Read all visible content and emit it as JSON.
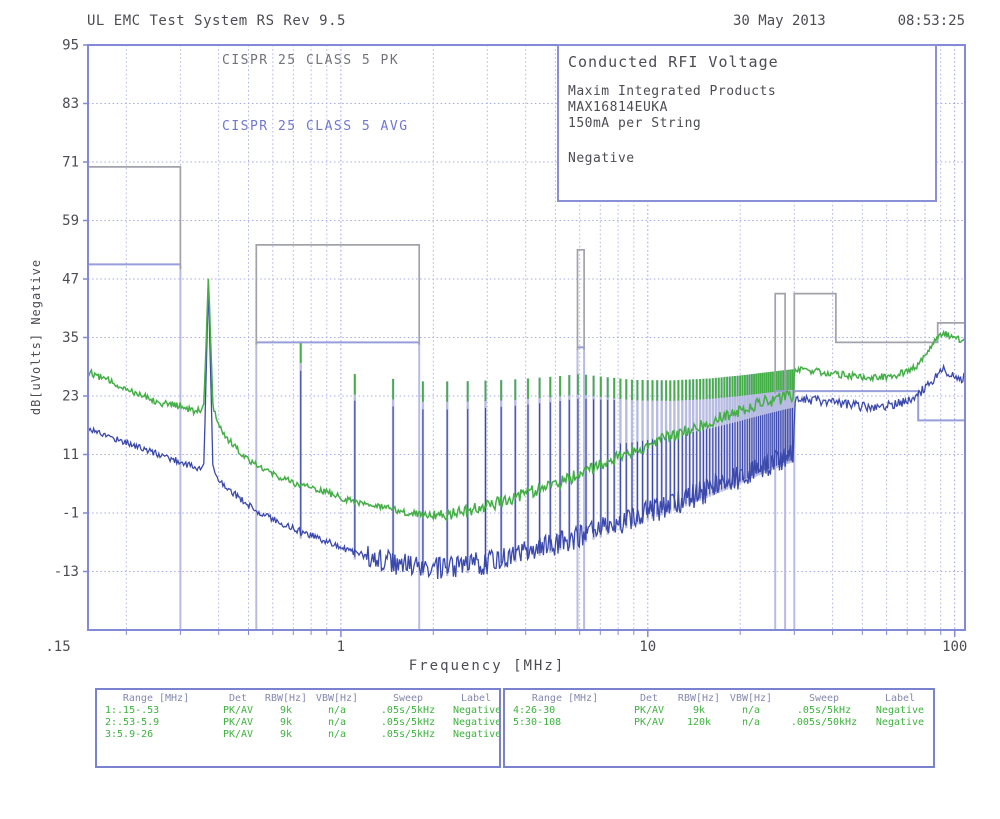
{
  "header": {
    "app_title": "UL EMC Test System RS Rev 9.5",
    "date": "30 May 2013",
    "time": "08:53:25"
  },
  "annotations": {
    "pk_label": "CISPR 25 CLASS 5 PK",
    "avg_label": "CISPR 25 CLASS 5 AVG"
  },
  "info_box": {
    "title": "Conducted RFI Voltage",
    "company": "Maxim Integrated Products",
    "part": "MAX16814EUKA",
    "condition": "150mA per String",
    "polarity": "Negative"
  },
  "tables": {
    "headers": [
      "Range [MHz]",
      "Det",
      "RBW[Hz]",
      "VBW[Hz]",
      "Sweep",
      "Label"
    ],
    "left_rows": [
      [
        "1:.15-.53",
        "PK/AV",
        "9k",
        "n/a",
        ".05s/5kHz",
        "Negative"
      ],
      [
        "2:.53-5.9",
        "PK/AV",
        "9k",
        "n/a",
        ".05s/5kHz",
        "Negative"
      ],
      [
        "3:5.9-26",
        "PK/AV",
        "9k",
        "n/a",
        ".05s/5kHz",
        "Negative"
      ]
    ],
    "right_rows": [
      [
        "4:26-30",
        "PK/AV",
        "9k",
        "n/a",
        ".05s/5kHz",
        "Negative"
      ],
      [
        "5:30-108",
        "PK/AV",
        "120k",
        "n/a",
        ".005s/50kHz",
        "Negative"
      ]
    ]
  },
  "chart_data": {
    "type": "line",
    "title": "Conducted RFI Voltage",
    "x_axis": {
      "label": "Frequency [MHz]",
      "scale": "log",
      "min": 0.15,
      "max": 108,
      "ticks": [
        [
          0.15,
          ".15"
        ],
        [
          1,
          "1"
        ],
        [
          10,
          "10"
        ],
        [
          100,
          "100"
        ]
      ]
    },
    "y_axis": {
      "label": "dB[uVolts] Negative",
      "min": -25,
      "max": 95,
      "ticks": [
        95,
        83,
        71,
        59,
        47,
        35,
        23,
        11,
        -1,
        -13
      ],
      "grid_values": [
        83,
        71,
        59,
        47,
        35,
        23,
        11,
        -1,
        -13
      ]
    },
    "colors": {
      "frame": "#8289d6",
      "grid": "#a6abe3",
      "pk_limit": "#a2a2aa",
      "avg_limit": "#989ddb",
      "pk_trace": "#45af47",
      "avg_trace": "#3b49ac",
      "comb_pale": "#b9bce2",
      "text": "#4c4c55"
    },
    "limits": {
      "pk": {
        "name": "CISPR 25 CLASS 5 PK",
        "segments_mhz_db": [
          [
            0.15,
            0.3,
            70
          ],
          [
            0.53,
            1.8,
            54
          ],
          [
            5.9,
            6.2,
            53
          ],
          [
            26,
            28,
            44
          ],
          [
            30,
            41,
            44
          ],
          [
            41,
            88,
            34
          ],
          [
            88,
            108,
            38
          ]
        ],
        "polylines": [
          [
            [
              0.15,
              70
            ],
            [
              0.3,
              70
            ],
            [
              0.3,
              49
            ]
          ],
          [
            [
              0.53,
              33.5
            ],
            [
              0.53,
              54
            ],
            [
              1.8,
              54
            ],
            [
              1.8,
              33.5
            ]
          ],
          [
            [
              5.9,
              32.5
            ],
            [
              5.9,
              53
            ],
            [
              6.2,
              53
            ],
            [
              6.2,
              32.5
            ]
          ],
          [
            [
              26,
              23.5
            ],
            [
              26,
              44
            ],
            [
              28,
              44
            ],
            [
              28,
              23.5
            ]
          ],
          [
            [
              30,
              23.5
            ],
            [
              30,
              44
            ],
            [
              41,
              44
            ],
            [
              41,
              34
            ],
            [
              88,
              34
            ],
            [
              88,
              38
            ],
            [
              108,
              38
            ]
          ]
        ]
      },
      "avg": {
        "name": "CISPR 25 CLASS 5 AVG",
        "segments_mhz_db": [
          [
            0.15,
            0.3,
            50
          ],
          [
            0.53,
            1.8,
            34
          ],
          [
            5.9,
            6.2,
            33
          ],
          [
            26,
            28,
            24
          ],
          [
            30,
            76,
            24
          ],
          [
            76,
            108,
            18
          ]
        ],
        "polylines": [
          [
            [
              0.15,
              50
            ],
            [
              0.3,
              50
            ]
          ],
          [
            [
              0.53,
              34
            ],
            [
              1.8,
              34
            ]
          ],
          [
            [
              5.9,
              33
            ],
            [
              6.2,
              33
            ]
          ],
          [
            [
              26,
              24
            ],
            [
              28,
              24
            ]
          ],
          [
            [
              30,
              24
            ],
            [
              76,
              24
            ],
            [
              76,
              18
            ],
            [
              108,
              18
            ]
          ]
        ]
      },
      "band_edge_verticals": [
        [
          0.3,
          50
        ],
        [
          0.53,
          34
        ],
        [
          1.8,
          34
        ],
        [
          5.9,
          33
        ],
        [
          6.2,
          33
        ],
        [
          26,
          24
        ],
        [
          28,
          24
        ],
        [
          30,
          24
        ]
      ]
    },
    "series": [
      {
        "name": "PK trace",
        "color": "#45af47",
        "points": [
          [
            0.15,
            28
          ],
          [
            0.17,
            26.5
          ],
          [
            0.2,
            24.5
          ],
          [
            0.23,
            23
          ],
          [
            0.26,
            21.5
          ],
          [
            0.3,
            21
          ],
          [
            0.33,
            19.8
          ],
          [
            0.35,
            20.3
          ],
          [
            0.358,
            21
          ],
          [
            0.37,
            48
          ],
          [
            0.383,
            21
          ],
          [
            0.4,
            17
          ],
          [
            0.43,
            14
          ],
          [
            0.47,
            11.5
          ],
          [
            0.5,
            10
          ],
          [
            0.55,
            8.5
          ],
          [
            0.6,
            7
          ],
          [
            0.7,
            5.2
          ],
          [
            0.8,
            4.2
          ],
          [
            0.9,
            3.2
          ],
          [
            1,
            2.2
          ],
          [
            1.2,
            0.8
          ],
          [
            1.4,
            0
          ],
          [
            1.6,
            -0.8
          ],
          [
            1.8,
            -1.2
          ],
          [
            2,
            -1.5
          ],
          [
            2.3,
            -1.2
          ],
          [
            2.6,
            -0.6
          ],
          [
            3,
            0.5
          ],
          [
            3.5,
            1.8
          ],
          [
            4,
            3
          ],
          [
            4.5,
            4
          ],
          [
            5,
            5
          ],
          [
            6,
            7
          ],
          [
            7,
            8.8
          ],
          [
            8,
            10.3
          ],
          [
            9,
            11.6
          ],
          [
            10,
            12.8
          ],
          [
            12,
            14.8
          ],
          [
            14,
            16.4
          ],
          [
            16,
            17.8
          ],
          [
            18,
            19
          ],
          [
            20,
            20
          ],
          [
            22,
            21
          ],
          [
            24,
            21.8
          ],
          [
            26,
            22.3
          ],
          [
            28,
            22.8
          ],
          [
            29.9,
            23.2
          ],
          [
            30.01,
            28.6
          ],
          [
            33,
            28.3
          ],
          [
            36,
            28
          ],
          [
            40,
            27.6
          ],
          [
            45,
            27.2
          ],
          [
            50,
            26.9
          ],
          [
            55,
            26.8
          ],
          [
            60,
            27
          ],
          [
            65,
            27.4
          ],
          [
            70,
            28
          ],
          [
            75,
            29.2
          ],
          [
            80,
            31
          ],
          [
            84,
            33
          ],
          [
            88,
            35
          ],
          [
            91,
            36
          ],
          [
            94,
            35.6
          ],
          [
            98,
            35
          ],
          [
            103,
            34.6
          ],
          [
            108,
            34.8
          ]
        ]
      },
      {
        "name": "AVG trace",
        "color": "#3b49ac",
        "points": [
          [
            0.15,
            16.5
          ],
          [
            0.17,
            15
          ],
          [
            0.2,
            13.5
          ],
          [
            0.23,
            12
          ],
          [
            0.26,
            10.8
          ],
          [
            0.3,
            9.5
          ],
          [
            0.33,
            8.5
          ],
          [
            0.35,
            8
          ],
          [
            0.358,
            9
          ],
          [
            0.37,
            46
          ],
          [
            0.383,
            8
          ],
          [
            0.4,
            6
          ],
          [
            0.43,
            4
          ],
          [
            0.47,
            2
          ],
          [
            0.5,
            0.5
          ],
          [
            0.55,
            -1
          ],
          [
            0.6,
            -2.2
          ],
          [
            0.7,
            -4.2
          ],
          [
            0.8,
            -5.6
          ],
          [
            0.9,
            -6.8
          ],
          [
            1,
            -8
          ],
          [
            1.2,
            -9.8
          ],
          [
            1.5,
            -11.3
          ],
          [
            1.8,
            -12.2
          ],
          [
            2,
            -12.6
          ],
          [
            2.3,
            -12.4
          ],
          [
            2.6,
            -11.8
          ],
          [
            3,
            -11
          ],
          [
            3.5,
            -10
          ],
          [
            4,
            -9
          ],
          [
            4.5,
            -8.2
          ],
          [
            5,
            -7.4
          ],
          [
            6,
            -5.9
          ],
          [
            7,
            -4.5
          ],
          [
            8,
            -3.2
          ],
          [
            9,
            -2.1
          ],
          [
            10,
            -1
          ],
          [
            12,
            0.8
          ],
          [
            14,
            2.4
          ],
          [
            16,
            3.9
          ],
          [
            18,
            5.2
          ],
          [
            20,
            6.5
          ],
          [
            22,
            7.7
          ],
          [
            24,
            8.7
          ],
          [
            26,
            9.6
          ],
          [
            28,
            10.4
          ],
          [
            29.9,
            11
          ],
          [
            30.01,
            22.6
          ],
          [
            33,
            22.3
          ],
          [
            36,
            22
          ],
          [
            40,
            21.6
          ],
          [
            45,
            21.2
          ],
          [
            50,
            20.9
          ],
          [
            55,
            20.8
          ],
          [
            60,
            21
          ],
          [
            65,
            21.4
          ],
          [
            70,
            22
          ],
          [
            75,
            23
          ],
          [
            80,
            24.6
          ],
          [
            84,
            26
          ],
          [
            88,
            27.4
          ],
          [
            91,
            28.4
          ],
          [
            94,
            28
          ],
          [
            98,
            27.2
          ],
          [
            103,
            26.6
          ],
          [
            108,
            26.8
          ]
        ]
      }
    ],
    "comb": {
      "fundamental_mhz": 0.37,
      "first_harmonic": 2,
      "max_mhz": 29.8,
      "pale_color": "#b9bce2",
      "top_envelope": [
        [
          0.74,
          34
        ],
        [
          1.11,
          27.5
        ],
        [
          1.48,
          26.5
        ],
        [
          1.85,
          26
        ],
        [
          2.5,
          26
        ],
        [
          3.5,
          26.3
        ],
        [
          5,
          27
        ],
        [
          6,
          27.5
        ],
        [
          7,
          27
        ],
        [
          9,
          26.3
        ],
        [
          12,
          26.2
        ],
        [
          16,
          26.6
        ],
        [
          20,
          27.2
        ],
        [
          24,
          27.8
        ],
        [
          28,
          28.3
        ],
        [
          29.8,
          28.5
        ]
      ]
    },
    "noise": {
      "seed": 12,
      "green_db": 0.7,
      "blue_db": 0.7,
      "blue_comb_extra_db": 1.8
    }
  }
}
